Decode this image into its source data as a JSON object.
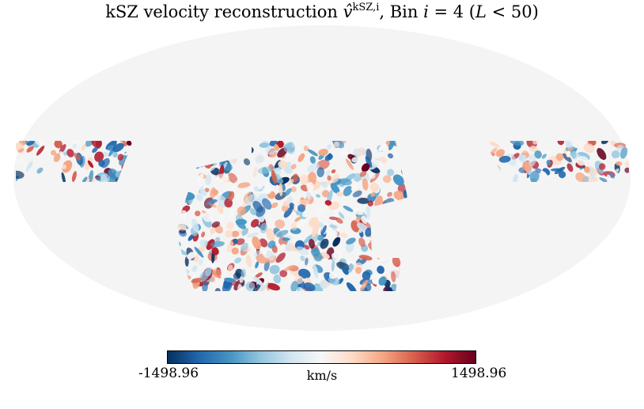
{
  "title": {
    "prefix": "kSZ velocity reconstruction ",
    "symbol": "v̂",
    "superscript": "kSZ,i",
    "middle": ", Bin ",
    "var": "i",
    "eq": " = 4 (",
    "L": "L",
    "suffix": " < 50)"
  },
  "colorbar": {
    "min_label": "-1498.96",
    "max_label": "1498.96",
    "unit": "km/s",
    "min": -1498.96,
    "max": 1498.96,
    "colormap": "RdBu_r",
    "stops": [
      "#053061",
      "#2166ac",
      "#4393c3",
      "#92c5de",
      "#d1e5f0",
      "#f7f7f7",
      "#fddbc7",
      "#f4a582",
      "#d6604d",
      "#b2182b",
      "#67001f"
    ]
  },
  "map": {
    "projection": "mollweide",
    "background_color": "#f4f4f4",
    "masked_color": "#f4f4f4"
  }
}
